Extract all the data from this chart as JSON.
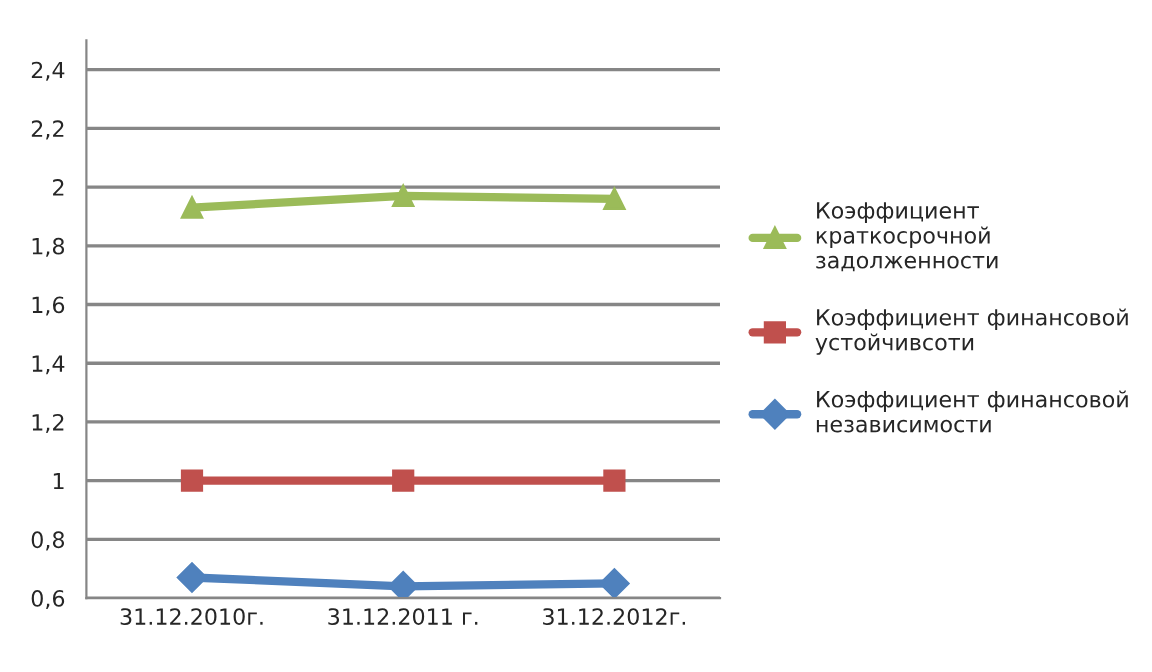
{
  "chart_data": {
    "type": "line",
    "categories": [
      "31.12.2010г.",
      "31.12.2011 г.",
      "31.12.2012г."
    ],
    "series": [
      {
        "name": "Коэффициент краткосрочной задолженности",
        "color": "#9bbb59",
        "marker": "triangle",
        "values": [
          1.93,
          1.97,
          1.96
        ]
      },
      {
        "name": "Коэффициент финансовой устойчивсоти",
        "color": "#c0504d",
        "marker": "square",
        "values": [
          1.0,
          1.0,
          1.0
        ]
      },
      {
        "name": "Коэффициент финансовой независимости",
        "color": "#4f81bd",
        "marker": "diamond",
        "values": [
          0.67,
          0.64,
          0.65
        ]
      }
    ],
    "ylim": [
      0.6,
      2.5
    ],
    "yticks": [
      {
        "value": 0.6,
        "label": "0,6"
      },
      {
        "value": 0.8,
        "label": "0,8"
      },
      {
        "value": 1,
        "label": "1"
      },
      {
        "value": 1.2,
        "label": "1,2"
      },
      {
        "value": 1.4,
        "label": "1,4"
      },
      {
        "value": 1.6,
        "label": "1,6"
      },
      {
        "value": 1.8,
        "label": "1,8"
      },
      {
        "value": 2,
        "label": "2"
      },
      {
        "value": 2.2,
        "label": "2,2"
      },
      {
        "value": 2.4,
        "label": "2,4"
      }
    ],
    "grid": "y",
    "legend": "right",
    "line_style": "solid"
  }
}
